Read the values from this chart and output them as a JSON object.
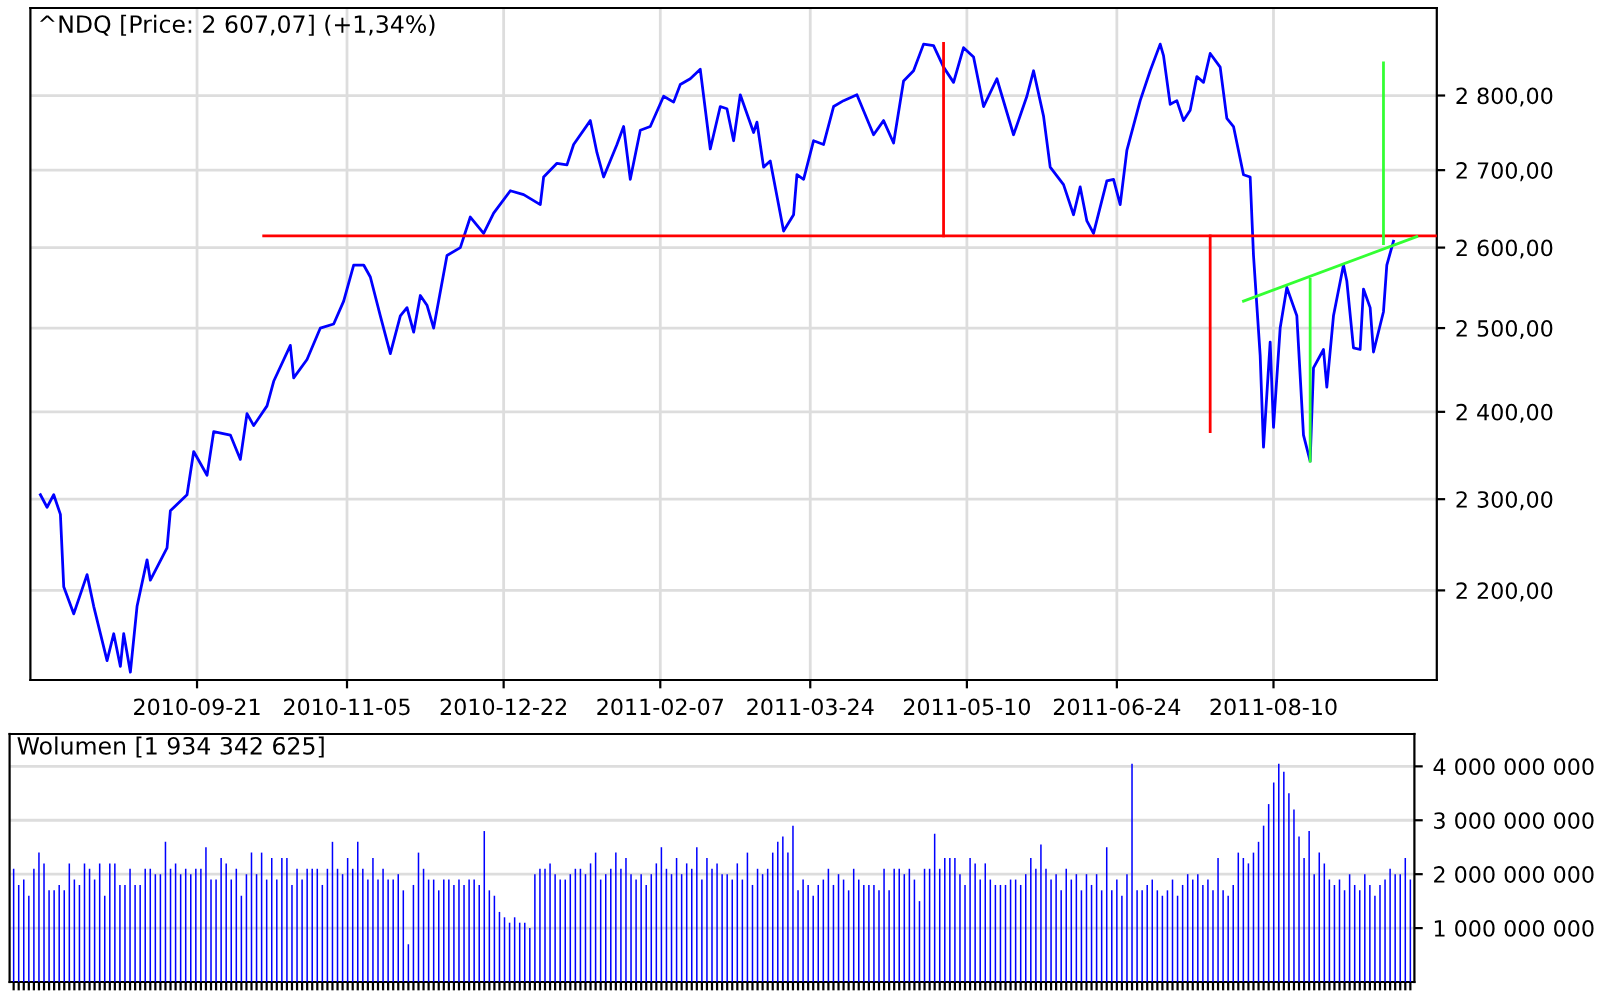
{
  "chart_data": [
    {
      "type": "line",
      "title": "^NDQ [Price: 2 607,07] (+1,34%)",
      "log": true,
      "grid": true,
      "xlim": [
        "2010-08-02",
        "2011-09-28"
      ],
      "xticks": [
        "2010-09-21",
        "2010-11-05",
        "2010-12-22",
        "2011-02-07",
        "2011-03-24",
        "2011-05-10",
        "2011-06-24",
        "2011-08-10"
      ],
      "ylim": [
        2106,
        2922
      ],
      "yticks": [
        {
          "value": 2200,
          "label": "2 200,00"
        },
        {
          "value": 2300,
          "label": "2 300,00"
        },
        {
          "value": 2400,
          "label": "2 400,00"
        },
        {
          "value": 2500,
          "label": "2 500,00"
        },
        {
          "value": 2600,
          "label": "2 600,00"
        },
        {
          "value": 2700,
          "label": "2 700,00"
        },
        {
          "value": 2800,
          "label": "2 800,00"
        }
      ],
      "series": [
        {
          "color": "#0000ff",
          "x": [
            "2010-08-05",
            "2010-08-07",
            "2010-08-09",
            "2010-08-11",
            "2010-08-12",
            "2010-08-15",
            "2010-08-19",
            "2010-08-21",
            "2010-08-25",
            "2010-08-27",
            "2010-08-29",
            "2010-08-30",
            "2010-09-01",
            "2010-09-03",
            "2010-09-06",
            "2010-09-07",
            "2010-09-12",
            "2010-09-13",
            "2010-09-18",
            "2010-09-20",
            "2010-09-24",
            "2010-09-26",
            "2010-10-01",
            "2010-10-04",
            "2010-10-06",
            "2010-10-08",
            "2010-10-12",
            "2010-10-14",
            "2010-10-19",
            "2010-10-20",
            "2010-10-24",
            "2010-10-28",
            "2010-11-01",
            "2010-11-04",
            "2010-11-07",
            "2010-11-10",
            "2010-11-12",
            "2010-11-15",
            "2010-11-18",
            "2010-11-21",
            "2010-11-23",
            "2010-11-25",
            "2010-11-27",
            "2010-11-29",
            "2010-12-01",
            "2010-12-05",
            "2010-12-09",
            "2010-12-12",
            "2010-12-16",
            "2010-12-19",
            "2010-12-24",
            "2010-12-28",
            "2011-01-02",
            "2011-01-03",
            "2011-01-07",
            "2011-01-10",
            "2011-01-12",
            "2011-01-17",
            "2011-01-19",
            "2011-01-21",
            "2011-01-25",
            "2011-01-27",
            "2011-01-29",
            "2011-02-01",
            "2011-02-04",
            "2011-02-08",
            "2011-02-11",
            "2011-02-13",
            "2011-02-16",
            "2011-02-19",
            "2011-02-22",
            "2011-02-25",
            "2011-02-27",
            "2011-03-01",
            "2011-03-03",
            "2011-03-07",
            "2011-03-08",
            "2011-03-10",
            "2011-03-12",
            "2011-03-16",
            "2011-03-19",
            "2011-03-20",
            "2011-03-22",
            "2011-03-25",
            "2011-03-28",
            "2011-03-31",
            "2011-04-03",
            "2011-04-07",
            "2011-04-12",
            "2011-04-15",
            "2011-04-18",
            "2011-04-21",
            "2011-04-24",
            "2011-04-27",
            "2011-04-30",
            "2011-05-03",
            "2011-05-06",
            "2011-05-09",
            "2011-05-12",
            "2011-05-15",
            "2011-05-19",
            "2011-05-24",
            "2011-05-28",
            "2011-05-30",
            "2011-06-02",
            "2011-06-04",
            "2011-06-08",
            "2011-06-11",
            "2011-06-13",
            "2011-06-15",
            "2011-06-17",
            "2011-06-21",
            "2011-06-23",
            "2011-06-25",
            "2011-06-27",
            "2011-07-01",
            "2011-07-04",
            "2011-07-07",
            "2011-07-08",
            "2011-07-10",
            "2011-07-12",
            "2011-07-14",
            "2011-07-16",
            "2011-07-18",
            "2011-07-20",
            "2011-07-22",
            "2011-07-25",
            "2011-07-27",
            "2011-07-29",
            "2011-08-01",
            "2011-08-03",
            "2011-08-04",
            "2011-08-06",
            "2011-08-07",
            "2011-08-09",
            "2011-08-10",
            "2011-08-12",
            "2011-08-14",
            "2011-08-17",
            "2011-08-19",
            "2011-08-21",
            "2011-08-22",
            "2011-08-25",
            "2011-08-26",
            "2011-08-28",
            "2011-08-31",
            "2011-09-01",
            "2011-09-03",
            "2011-09-05",
            "2011-09-06",
            "2011-09-08",
            "2011-09-09",
            "2011-09-12",
            "2011-09-13",
            "2011-09-15"
          ],
          "values": [
            2305,
            2291,
            2305,
            2283,
            2204,
            2175,
            2217,
            2183,
            2126,
            2154,
            2120,
            2154,
            2114,
            2183,
            2233,
            2211,
            2246,
            2287,
            2305,
            2354,
            2327,
            2377,
            2373,
            2345,
            2398,
            2384,
            2407,
            2436,
            2479,
            2440,
            2462,
            2500,
            2505,
            2533,
            2578,
            2578,
            2563,
            2515,
            2469,
            2515,
            2525,
            2495,
            2540,
            2528,
            2500,
            2590,
            2600,
            2639,
            2618,
            2644,
            2673,
            2668,
            2655,
            2691,
            2709,
            2707,
            2734,
            2766,
            2723,
            2691,
            2734,
            2758,
            2688,
            2753,
            2758,
            2799,
            2791,
            2815,
            2823,
            2836,
            2728,
            2785,
            2782,
            2739,
            2801,
            2750,
            2764,
            2704,
            2712,
            2621,
            2642,
            2694,
            2688,
            2739,
            2734,
            2785,
            2793,
            2801,
            2747,
            2766,
            2736,
            2820,
            2834,
            2871,
            2869,
            2839,
            2818,
            2866,
            2853,
            2785,
            2823,
            2747,
            2799,
            2834,
            2772,
            2704,
            2681,
            2642,
            2678,
            2634,
            2618,
            2686,
            2688,
            2655,
            2726,
            2793,
            2834,
            2871,
            2855,
            2788,
            2793,
            2766,
            2780,
            2826,
            2818,
            2858,
            2839,
            2769,
            2758,
            2694,
            2691,
            2590,
            2467,
            2359,
            2483,
            2382,
            2500,
            2550,
            2515,
            2373,
            2343,
            2452,
            2474,
            2429,
            2515,
            2578,
            2558,
            2476,
            2474,
            2548,
            2525,
            2471,
            2520,
            2578,
            2608
          ]
        },
        {
          "color": "#ff0000",
          "x": [
            "2010-10-11",
            "2011-09-28"
          ],
          "values": [
            2615,
            2615
          ]
        },
        {
          "color": "#ff0000",
          "x": [
            "2011-05-03",
            "2011-05-03"
          ],
          "values": [
            2615,
            2872
          ]
        },
        {
          "color": "#ff0000",
          "x": [
            "2011-07-22",
            "2011-07-22"
          ],
          "values": [
            2615,
            2377
          ]
        },
        {
          "color": "#33ff33",
          "x": [
            "2011-08-01",
            "2011-09-22"
          ],
          "values": [
            2533,
            2614
          ]
        },
        {
          "color": "#33ff33",
          "x": [
            "2011-08-21",
            "2011-08-21"
          ],
          "values": [
            2560,
            2343
          ]
        },
        {
          "color": "#33ff33",
          "x": [
            "2011-09-12",
            "2011-09-12"
          ],
          "values": [
            2605,
            2845
          ]
        }
      ]
    },
    {
      "type": "bar",
      "title": "Wolumen [1 934 342 625]",
      "grid": "y",
      "color": "#0000ff",
      "ylim": [
        0,
        4600000000.0
      ],
      "yticks": [
        {
          "value": 1000000000.0,
          "label": "1 000 000 000"
        },
        {
          "value": 2000000000.0,
          "label": "2 000 000 000"
        },
        {
          "value": 3000000000.0,
          "label": "3 000 000 000"
        },
        {
          "value": 4000000000.0,
          "label": "4 000 000 000"
        }
      ],
      "categories": [
        null,
        null,
        null,
        null,
        null,
        null,
        null,
        null,
        null,
        null,
        null,
        null,
        null,
        null,
        null,
        null,
        null,
        null,
        null,
        null,
        null,
        null,
        null,
        null,
        null,
        null,
        null,
        null,
        null,
        null,
        null,
        null,
        null,
        null,
        null,
        null,
        null,
        null,
        null,
        null,
        null,
        null,
        null,
        null,
        null,
        null,
        null,
        null,
        null,
        null,
        null,
        null,
        null,
        null,
        null,
        null,
        null,
        null,
        null,
        null,
        null,
        null,
        null,
        null,
        null,
        null,
        null,
        null,
        null,
        null,
        null,
        null,
        null,
        null,
        null,
        null,
        null,
        null,
        null,
        null,
        null,
        null,
        null,
        null,
        null,
        null,
        null,
        null,
        null,
        null,
        null,
        null,
        null,
        null,
        null,
        null,
        null,
        null,
        null,
        null,
        null,
        null,
        null,
        null,
        null,
        null,
        null,
        null,
        null,
        null,
        null,
        null,
        null,
        null,
        null,
        null,
        null,
        null,
        null,
        null,
        null,
        null,
        null,
        null,
        null,
        null,
        null,
        null,
        null,
        null,
        null,
        null,
        null,
        null,
        null,
        null,
        null,
        null,
        null,
        null,
        null,
        null,
        null,
        null,
        null,
        null,
        null,
        null,
        null,
        null,
        null,
        null,
        null,
        null,
        null,
        null,
        null,
        null,
        null,
        null,
        null,
        null,
        null,
        null,
        null,
        null,
        null,
        null,
        null,
        null,
        null,
        null,
        null,
        null,
        null,
        null,
        null,
        null,
        null,
        null,
        null,
        null,
        null,
        null,
        null,
        null,
        null,
        null,
        null,
        null,
        null,
        null,
        null,
        null,
        null,
        null,
        null,
        null,
        null,
        null,
        null,
        null,
        null,
        null,
        null,
        null,
        null,
        null,
        null,
        null,
        null,
        null,
        null,
        null,
        null,
        null,
        null,
        null,
        null,
        null,
        null,
        null,
        null,
        null,
        null,
        null,
        null,
        null,
        null,
        null,
        null,
        null,
        null,
        null,
        null,
        null,
        null,
        null,
        null,
        null,
        null,
        null,
        null,
        null,
        null,
        null,
        null,
        null,
        null,
        null,
        null,
        null,
        null,
        null,
        null,
        null,
        null,
        null,
        null,
        null,
        null,
        null,
        null,
        null,
        null,
        null,
        null,
        null,
        null,
        null,
        null,
        null,
        null,
        null,
        null,
        null,
        null
      ],
      "values": [
        2100000000.0,
        1800000000.0,
        1900000000.0,
        1600000000.0,
        2100000000.0,
        2400000000.0,
        2200000000.0,
        1700000000.0,
        1700000000.0,
        1800000000.0,
        1700000000.0,
        2200000000.0,
        1900000000.0,
        1800000000.0,
        2200000000.0,
        2100000000.0,
        1900000000.0,
        2200000000.0,
        1600000000.0,
        2200000000.0,
        2200000000.0,
        1800000000.0,
        1800000000.0,
        2100000000.0,
        1800000000.0,
        1800000000.0,
        2100000000.0,
        2100000000.0,
        2000000000.0,
        2000000000.0,
        2600000000.0,
        2100000000.0,
        2200000000.0,
        2000000000.0,
        2100000000.0,
        2000000000.0,
        2100000000.0,
        2100000000.0,
        2500000000.0,
        1900000000.0,
        1900000000.0,
        2300000000.0,
        2200000000.0,
        1900000000.0,
        2100000000.0,
        1600000000.0,
        2000000000.0,
        2400000000.0,
        2000000000.0,
        2400000000.0,
        1900000000.0,
        2300000000.0,
        1900000000.0,
        2300000000.0,
        2300000000.0,
        1800000000.0,
        2100000000.0,
        1900000000.0,
        2100000000.0,
        2100000000.0,
        2100000000.0,
        1800000000.0,
        2100000000.0,
        2600000000.0,
        2100000000.0,
        2000000000.0,
        2300000000.0,
        2100000000.0,
        2600000000.0,
        2100000000.0,
        1900000000.0,
        2300000000.0,
        1900000000.0,
        2100000000.0,
        1900000000.0,
        1900000000.0,
        2000000000.0,
        1700000000.0,
        700000000.0,
        1800000000.0,
        2400000000.0,
        2100000000.0,
        1900000000.0,
        1900000000.0,
        1700000000.0,
        1900000000.0,
        1900000000.0,
        1800000000.0,
        1900000000.0,
        1800000000.0,
        1900000000.0,
        1900000000.0,
        1800000000.0,
        2800000000.0,
        1700000000.0,
        1600000000.0,
        1300000000.0,
        1200000000.0,
        1100000000.0,
        1200000000.0,
        1100000000.0,
        1100000000.0,
        1000000000.0,
        2000000000.0,
        2100000000.0,
        2100000000.0,
        2200000000.0,
        2000000000.0,
        1900000000.0,
        1900000000.0,
        2000000000.0,
        2100000000.0,
        2100000000.0,
        2000000000.0,
        2200000000.0,
        2400000000.0,
        1900000000.0,
        2000000000.0,
        2100000000.0,
        2400000000.0,
        2100000000.0,
        2300000000.0,
        2000000000.0,
        1900000000.0,
        2000000000.0,
        1800000000.0,
        2000000000.0,
        2200000000.0,
        2500000000.0,
        2100000000.0,
        2000000000.0,
        2300000000.0,
        2000000000.0,
        2200000000.0,
        2100000000.0,
        2500000000.0,
        1900000000.0,
        2300000000.0,
        2100000000.0,
        2200000000.0,
        2000000000.0,
        2000000000.0,
        1900000000.0,
        2200000000.0,
        1900000000.0,
        2400000000.0,
        1800000000.0,
        2100000000.0,
        2000000000.0,
        2100000000.0,
        2400000000.0,
        2600000000.0,
        2700000000.0,
        2400000000.0,
        2900000000.0,
        1700000000.0,
        1900000000.0,
        1800000000.0,
        1600000000.0,
        1800000000.0,
        1900000000.0,
        2100000000.0,
        1800000000.0,
        2000000000.0,
        1900000000.0,
        1700000000.0,
        2100000000.0,
        1900000000.0,
        1800000000.0,
        1800000000.0,
        1800000000.0,
        1700000000.0,
        2100000000.0,
        1700000000.0,
        2100000000.0,
        2100000000.0,
        2000000000.0,
        2100000000.0,
        1900000000.0,
        1500000000.0,
        2100000000.0,
        2100000000.0,
        2750000000.0,
        2100000000.0,
        2300000000.0,
        2300000000.0,
        2300000000.0,
        2000000000.0,
        1800000000.0,
        2300000000.0,
        2200000000.0,
        1900000000.0,
        2200000000.0,
        1900000000.0,
        1800000000.0,
        1800000000.0,
        1800000000.0,
        1900000000.0,
        1900000000.0,
        1800000000.0,
        2000000000.0,
        2300000000.0,
        2100000000.0,
        2550000000.0,
        2100000000.0,
        1900000000.0,
        2000000000.0,
        1700000000.0,
        2100000000.0,
        1900000000.0,
        2000000000.0,
        1700000000.0,
        2000000000.0,
        1800000000.0,
        2000000000.0,
        1700000000.0,
        2500000000.0,
        1700000000.0,
        1900000000.0,
        1600000000.0,
        2000000000.0,
        4050000000.0,
        1700000000.0,
        1700000000.0,
        1800000000.0,
        1900000000.0,
        1700000000.0,
        1600000000.0,
        1700000000.0,
        1900000000.0,
        1600000000.0,
        1800000000.0,
        2000000000.0,
        1900000000.0,
        2000000000.0,
        1800000000.0,
        1900000000.0,
        1700000000.0,
        2300000000.0,
        1700000000.0,
        1600000000.0,
        1800000000.0,
        2400000000.0,
        2300000000.0,
        2200000000.0,
        2400000000.0,
        2600000000.0,
        2900000000.0,
        3300000000.0,
        3700000000.0,
        4050000000.0,
        3900000000.0,
        3500000000.0,
        3200000000.0,
        2700000000.0,
        2300000000.0,
        2800000000.0,
        2000000000.0,
        2400000000.0,
        2200000000.0,
        1900000000.0,
        1800000000.0,
        1900000000.0,
        1700000000.0,
        2000000000.0,
        1800000000.0,
        1700000000.0,
        2000000000.0,
        1800000000.0,
        1600000000.0,
        1800000000.0,
        1900000000.0,
        2100000000.0,
        2000000000.0,
        2000000000.0,
        2300000000.0,
        1900000000.0
      ]
    }
  ]
}
